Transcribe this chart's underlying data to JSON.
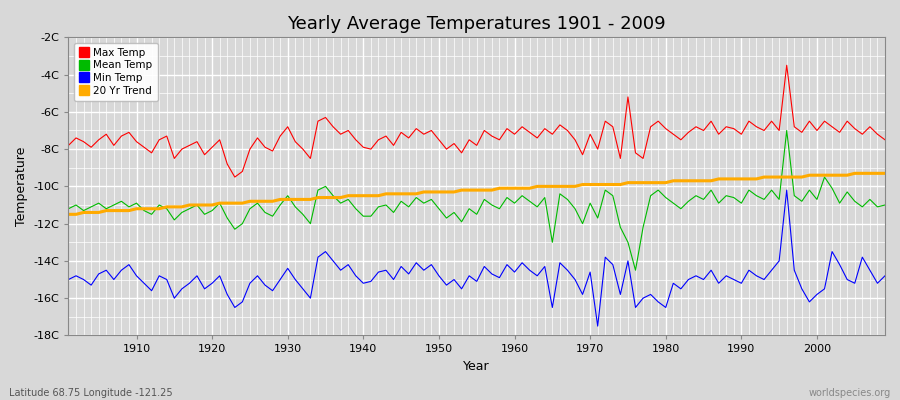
{
  "title": "Yearly Average Temperatures 1901 - 2009",
  "xlabel": "Year",
  "ylabel": "Temperature",
  "background_color": "#d8d8d8",
  "plot_bg_color": "#d8d8d8",
  "grid_color": "#ffffff",
  "ylim": [
    -18,
    -2
  ],
  "xlim": [
    1901,
    2009
  ],
  "yticks": [
    -18,
    -16,
    -14,
    -12,
    -10,
    -8,
    -6,
    -4,
    -2
  ],
  "ytick_labels": [
    "-18C",
    "-16C",
    "-14C",
    "-12C",
    "-10C",
    "-8C",
    "-6C",
    "-4C",
    "-2C"
  ],
  "xticks": [
    1910,
    1920,
    1930,
    1940,
    1950,
    1960,
    1970,
    1980,
    1990,
    2000
  ],
  "legend_labels": [
    "Max Temp",
    "Mean Temp",
    "Min Temp",
    "20 Yr Trend"
  ],
  "line_colors": [
    "#ff0000",
    "#00bb00",
    "#0000ff",
    "#ffaa00"
  ],
  "title_fontsize": 13,
  "footer_left": "Latitude 68.75 Longitude -121.25",
  "footer_right": "worldspecies.org",
  "max_temp": [
    -7.8,
    -7.4,
    -7.6,
    -7.9,
    -7.5,
    -7.2,
    -7.8,
    -7.3,
    -7.1,
    -7.6,
    -7.9,
    -8.2,
    -7.5,
    -7.3,
    -8.5,
    -8.0,
    -7.8,
    -7.6,
    -8.3,
    -7.9,
    -7.5,
    -8.8,
    -9.5,
    -9.2,
    -8.0,
    -7.4,
    -7.9,
    -8.1,
    -7.3,
    -6.8,
    -7.6,
    -8.0,
    -8.5,
    -6.5,
    -6.3,
    -6.8,
    -7.2,
    -7.0,
    -7.5,
    -7.9,
    -8.0,
    -7.5,
    -7.3,
    -7.8,
    -7.1,
    -7.4,
    -6.9,
    -7.2,
    -7.0,
    -7.5,
    -8.0,
    -7.7,
    -8.2,
    -7.5,
    -7.8,
    -7.0,
    -7.3,
    -7.5,
    -6.9,
    -7.2,
    -6.8,
    -7.1,
    -7.4,
    -6.9,
    -7.2,
    -6.7,
    -7.0,
    -7.5,
    -8.3,
    -7.2,
    -8.0,
    -6.5,
    -6.8,
    -8.5,
    -5.2,
    -8.2,
    -8.5,
    -6.8,
    -6.5,
    -6.9,
    -7.2,
    -7.5,
    -7.1,
    -6.8,
    -7.0,
    -6.5,
    -7.2,
    -6.8,
    -6.9,
    -7.2,
    -6.5,
    -6.8,
    -7.0,
    -6.5,
    -7.0,
    -3.5,
    -6.8,
    -7.1,
    -6.5,
    -7.0,
    -6.5,
    -6.8,
    -7.1,
    -6.5,
    -6.9,
    -7.2,
    -6.8,
    -7.2,
    -7.5
  ],
  "mean_temp": [
    -11.2,
    -11.0,
    -11.3,
    -11.1,
    -10.9,
    -11.2,
    -11.0,
    -10.8,
    -11.1,
    -10.9,
    -11.3,
    -11.5,
    -11.0,
    -11.2,
    -11.8,
    -11.4,
    -11.2,
    -11.0,
    -11.5,
    -11.3,
    -10.9,
    -11.7,
    -12.3,
    -12.0,
    -11.2,
    -10.9,
    -11.4,
    -11.6,
    -11.0,
    -10.5,
    -11.1,
    -11.5,
    -12.0,
    -10.2,
    -10.0,
    -10.5,
    -10.9,
    -10.7,
    -11.2,
    -11.6,
    -11.6,
    -11.1,
    -11.0,
    -11.4,
    -10.8,
    -11.1,
    -10.6,
    -10.9,
    -10.7,
    -11.2,
    -11.7,
    -11.4,
    -11.9,
    -11.2,
    -11.5,
    -10.7,
    -11.0,
    -11.2,
    -10.6,
    -10.9,
    -10.5,
    -10.8,
    -11.1,
    -10.6,
    -13.0,
    -10.4,
    -10.7,
    -11.2,
    -12.0,
    -10.9,
    -11.7,
    -10.2,
    -10.5,
    -12.2,
    -13.0,
    -14.5,
    -12.2,
    -10.5,
    -10.2,
    -10.6,
    -10.9,
    -11.2,
    -10.8,
    -10.5,
    -10.7,
    -10.2,
    -10.9,
    -10.5,
    -10.6,
    -10.9,
    -10.2,
    -10.5,
    -10.7,
    -10.2,
    -10.7,
    -7.0,
    -10.5,
    -10.8,
    -10.2,
    -10.7,
    -9.5,
    -10.1,
    -10.9,
    -10.3,
    -10.8,
    -11.1,
    -10.7,
    -11.1,
    -11.0
  ],
  "min_temp": [
    -15.0,
    -14.8,
    -15.0,
    -15.3,
    -14.7,
    -14.5,
    -15.0,
    -14.5,
    -14.2,
    -14.8,
    -15.2,
    -15.6,
    -14.8,
    -15.0,
    -16.0,
    -15.5,
    -15.2,
    -14.8,
    -15.5,
    -15.2,
    -14.8,
    -15.8,
    -16.5,
    -16.2,
    -15.2,
    -14.8,
    -15.3,
    -15.6,
    -15.0,
    -14.4,
    -15.0,
    -15.5,
    -16.0,
    -13.8,
    -13.5,
    -14.0,
    -14.5,
    -14.2,
    -14.8,
    -15.2,
    -15.1,
    -14.6,
    -14.5,
    -15.0,
    -14.3,
    -14.7,
    -14.1,
    -14.5,
    -14.2,
    -14.8,
    -15.3,
    -15.0,
    -15.5,
    -14.8,
    -15.1,
    -14.3,
    -14.7,
    -14.9,
    -14.2,
    -14.6,
    -14.1,
    -14.5,
    -14.8,
    -14.3,
    -16.5,
    -14.1,
    -14.5,
    -15.0,
    -15.8,
    -14.6,
    -17.5,
    -13.8,
    -14.2,
    -15.8,
    -14.0,
    -16.5,
    -16.0,
    -15.8,
    -16.2,
    -16.5,
    -15.2,
    -15.5,
    -15.0,
    -14.8,
    -15.0,
    -14.5,
    -15.2,
    -14.8,
    -15.0,
    -15.2,
    -14.5,
    -14.8,
    -15.0,
    -14.5,
    -14.0,
    -10.2,
    -14.5,
    -15.5,
    -16.2,
    -15.8,
    -15.5,
    -13.5,
    -14.2,
    -15.0,
    -15.2,
    -13.8,
    -14.5,
    -15.2,
    -14.8
  ],
  "trend_temp": [
    -11.5,
    -11.5,
    -11.4,
    -11.4,
    -11.4,
    -11.3,
    -11.3,
    -11.3,
    -11.3,
    -11.2,
    -11.2,
    -11.2,
    -11.2,
    -11.1,
    -11.1,
    -11.1,
    -11.0,
    -11.0,
    -11.0,
    -11.0,
    -10.9,
    -10.9,
    -10.9,
    -10.9,
    -10.8,
    -10.8,
    -10.8,
    -10.8,
    -10.7,
    -10.7,
    -10.7,
    -10.7,
    -10.7,
    -10.6,
    -10.6,
    -10.6,
    -10.6,
    -10.5,
    -10.5,
    -10.5,
    -10.5,
    -10.5,
    -10.4,
    -10.4,
    -10.4,
    -10.4,
    -10.4,
    -10.3,
    -10.3,
    -10.3,
    -10.3,
    -10.3,
    -10.2,
    -10.2,
    -10.2,
    -10.2,
    -10.2,
    -10.1,
    -10.1,
    -10.1,
    -10.1,
    -10.1,
    -10.0,
    -10.0,
    -10.0,
    -10.0,
    -10.0,
    -10.0,
    -9.9,
    -9.9,
    -9.9,
    -9.9,
    -9.9,
    -9.9,
    -9.8,
    -9.8,
    -9.8,
    -9.8,
    -9.8,
    -9.8,
    -9.7,
    -9.7,
    -9.7,
    -9.7,
    -9.7,
    -9.7,
    -9.6,
    -9.6,
    -9.6,
    -9.6,
    -9.6,
    -9.6,
    -9.5,
    -9.5,
    -9.5,
    -9.5,
    -9.5,
    -9.5,
    -9.4,
    -9.4,
    -9.4,
    -9.4,
    -9.4,
    -9.4,
    -9.3,
    -9.3,
    -9.3,
    -9.3,
    -9.3
  ]
}
